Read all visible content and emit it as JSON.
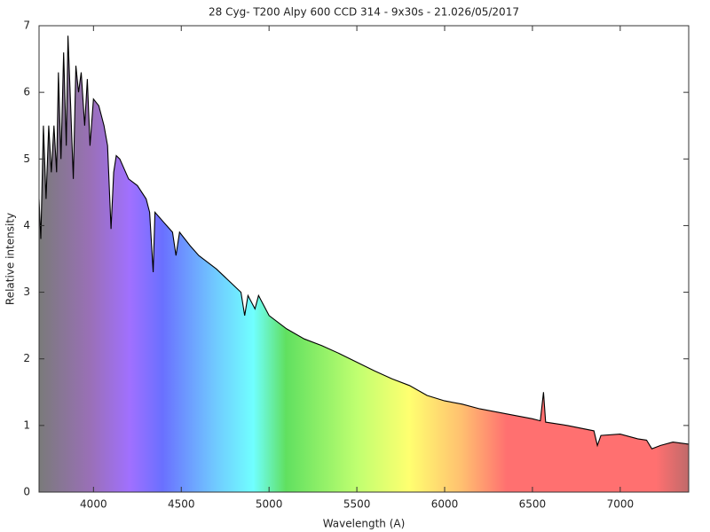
{
  "chart_data": {
    "type": "area-line",
    "title": "28 Cyg- T200 Alpy 600 CCD 314 - 9x30s - 21.026/05/2017",
    "x_label": "Wavelength (A)",
    "y_label": "Relative intensity",
    "xlim": [
      3690,
      7390
    ],
    "ylim": [
      0,
      7
    ],
    "xticks": [
      4000,
      4500,
      5000,
      5500,
      6000,
      6500,
      7000
    ],
    "yticks": [
      0,
      1,
      2,
      3,
      4,
      5,
      6,
      7
    ],
    "series": [
      {
        "color": "#000000",
        "x": [
          3690,
          3700,
          3715,
          3730,
          3745,
          3760,
          3775,
          3790,
          3800,
          3815,
          3830,
          3845,
          3855,
          3870,
          3885,
          3900,
          3915,
          3930,
          3950,
          3965,
          3980,
          4000,
          4030,
          4060,
          4080,
          4100,
          4115,
          4130,
          4150,
          4200,
          4250,
          4300,
          4320,
          4340,
          4350,
          4400,
          4450,
          4470,
          4490,
          4550,
          4600,
          4700,
          4800,
          4840,
          4861,
          4880,
          4920,
          4940,
          5000,
          5100,
          5200,
          5300,
          5400,
          5500,
          5600,
          5700,
          5800,
          5900,
          6000,
          6100,
          6200,
          6300,
          6400,
          6500,
          6545,
          6563,
          6575,
          6700,
          6850,
          6870,
          6890,
          7000,
          7100,
          7150,
          7180,
          7230,
          7300,
          7390
        ],
        "values": [
          4.4,
          3.8,
          5.5,
          4.4,
          5.5,
          4.8,
          5.5,
          4.8,
          6.3,
          5.0,
          6.6,
          5.2,
          6.85,
          5.8,
          4.7,
          6.4,
          6.0,
          6.3,
          5.5,
          6.2,
          5.2,
          5.9,
          5.8,
          5.5,
          5.2,
          3.95,
          4.8,
          5.05,
          5.0,
          4.7,
          4.6,
          4.4,
          4.2,
          3.3,
          4.2,
          4.05,
          3.9,
          3.55,
          3.9,
          3.7,
          3.55,
          3.35,
          3.1,
          3.0,
          2.65,
          2.95,
          2.75,
          2.95,
          2.65,
          2.45,
          2.3,
          2.2,
          2.08,
          1.95,
          1.82,
          1.7,
          1.6,
          1.45,
          1.37,
          1.32,
          1.25,
          1.2,
          1.15,
          1.1,
          1.07,
          1.5,
          1.05,
          1.0,
          0.92,
          0.7,
          0.85,
          0.87,
          0.8,
          0.78,
          0.65,
          0.7,
          0.75,
          0.72
        ]
      }
    ]
  }
}
